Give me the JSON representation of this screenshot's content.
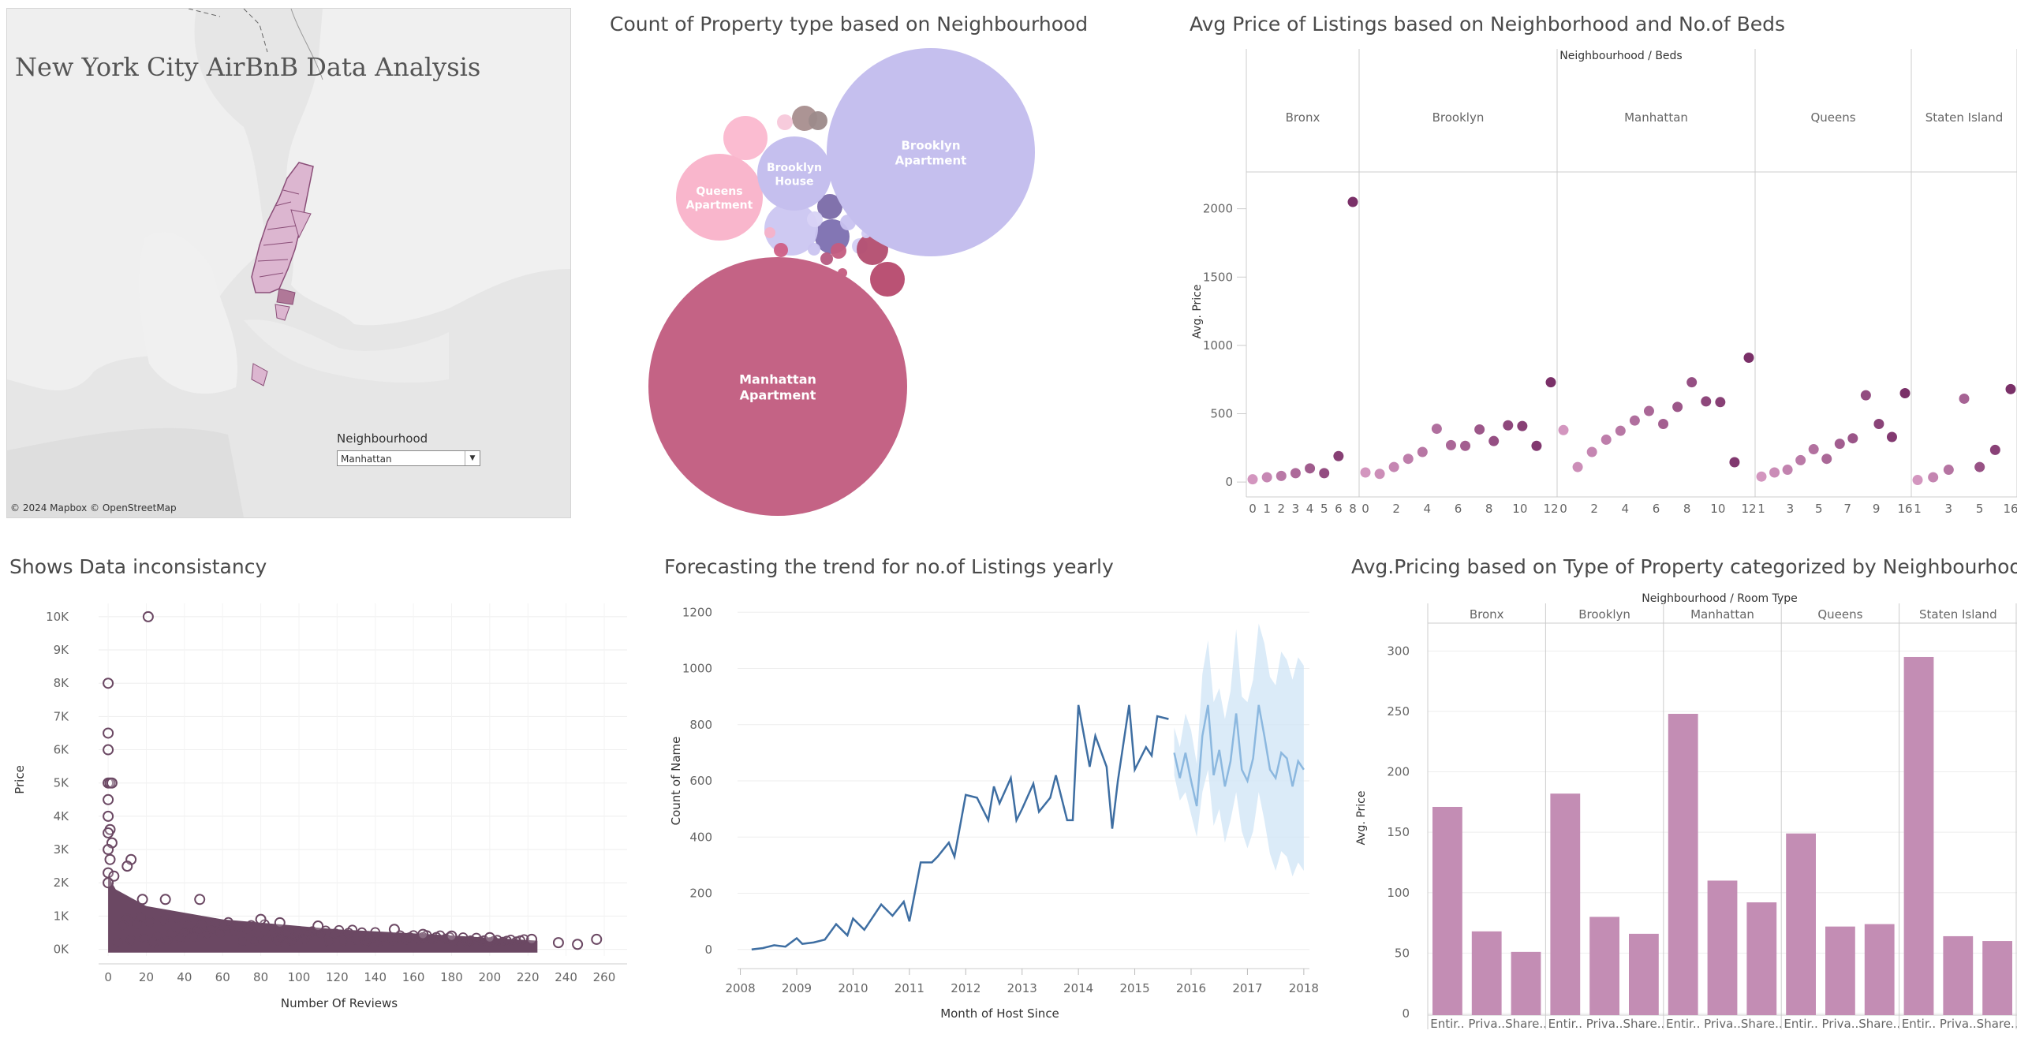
{
  "map": {
    "title": "New York City AirBnB Data Analysis",
    "filter_label": "Neighbourhood",
    "filter_value": "Manhattan",
    "attribution": "© 2024 Mapbox © OpenStreetMap"
  },
  "titles": {
    "bubble": "Count of Property type based on Neighbourhood",
    "dot": "Avg Price of Listings based on Neighborhood and No.of Beds",
    "scatter": "Shows Data inconsistancy",
    "forecast": "Forecasting the trend for no.of Listings yearly",
    "bar": "Avg.Pricing based on Type of Property categorized by Neighbourhood"
  },
  "chart_data": [
    {
      "type": "bubble",
      "title": "Count of Property type based on Neighbourhood",
      "labeled_bubbles": [
        {
          "label": [
            "Manhattan",
            "Apartment"
          ],
          "color": "#c46385"
        },
        {
          "label": [
            "Brooklyn",
            "Apartment"
          ],
          "color": "#c5bfee"
        },
        {
          "label": [
            "Queens",
            "Apartment"
          ],
          "color": "#f9b6cc"
        },
        {
          "label": [
            "Brooklyn",
            "House"
          ],
          "color": "#c5bfee"
        }
      ]
    },
    {
      "type": "scatter",
      "title": "Avg Price of Listings based on Neighborhood and No.of Beds",
      "header": "Neighbourhood / Beds",
      "ylabel": "Avg. Price",
      "yticks": [
        0,
        500,
        1000,
        1500,
        2000
      ],
      "ylim": [
        -80,
        2200
      ],
      "panels": [
        {
          "name": "Bronx",
          "xticks": [
            "0",
            "1",
            "2",
            "3",
            "4",
            "5",
            "6",
            "8"
          ],
          "x": [
            0,
            1,
            2,
            3,
            4,
            5,
            6,
            8
          ],
          "y": [
            20,
            35,
            45,
            65,
            100,
            65,
            190,
            2050
          ]
        },
        {
          "name": "Brooklyn",
          "xticks": [
            "0",
            "2",
            "4",
            "6",
            "8",
            "10",
            "12"
          ],
          "x": [
            0,
            1,
            2,
            3,
            4,
            5,
            6,
            7,
            8,
            9,
            10,
            11,
            12,
            13
          ],
          "y": [
            70,
            60,
            110,
            170,
            220,
            390,
            270,
            265,
            385,
            300,
            415,
            410,
            265,
            730
          ]
        },
        {
          "name": "Manhattan",
          "xticks": [
            "0",
            "2",
            "4",
            "6",
            "8",
            "10",
            "12"
          ],
          "x": [
            0,
            1,
            2,
            3,
            4,
            5,
            6,
            7,
            8,
            9,
            10,
            11,
            12,
            13
          ],
          "y": [
            380,
            110,
            220,
            310,
            375,
            450,
            520,
            425,
            550,
            730,
            590,
            585,
            145,
            910
          ]
        },
        {
          "name": "Queens",
          "xticks": [
            "1",
            "3",
            "5",
            "7",
            "9",
            "16"
          ],
          "x": [
            0,
            1,
            2,
            3,
            4,
            5,
            6,
            7,
            8,
            9,
            10,
            11
          ],
          "y": [
            40,
            70,
            90,
            160,
            240,
            170,
            280,
            320,
            635,
            425,
            330,
            650
          ]
        },
        {
          "name": "Staten Island",
          "xticks": [
            "1",
            "3",
            "5",
            "16"
          ],
          "x": [
            0,
            1,
            2,
            3,
            4,
            5,
            6
          ],
          "y": [
            15,
            35,
            90,
            610,
            110,
            235,
            680
          ]
        }
      ]
    },
    {
      "type": "scatter",
      "title": "Shows Data inconsistancy",
      "xlabel": "Number Of Reviews",
      "ylabel": "Price",
      "xticks": [
        0,
        20,
        40,
        60,
        80,
        100,
        120,
        140,
        160,
        180,
        200,
        220,
        240,
        260
      ],
      "yticks": [
        "0K",
        "1K",
        "2K",
        "3K",
        "4K",
        "5K",
        "6K",
        "7K",
        "8K",
        "9K",
        "10K"
      ],
      "xlim": [
        -5,
        272
      ],
      "ylim": [
        -200,
        10400
      ],
      "outliers": [
        [
          21,
          10000
        ],
        [
          0,
          8000
        ],
        [
          0,
          6500
        ],
        [
          0,
          6000
        ],
        [
          0,
          5000
        ],
        [
          1,
          5000
        ],
        [
          2,
          5000
        ],
        [
          0,
          4500
        ],
        [
          0,
          4000
        ],
        [
          1,
          3600
        ],
        [
          0,
          3500
        ],
        [
          2,
          3200
        ],
        [
          0,
          3000
        ],
        [
          1,
          2700
        ],
        [
          12,
          2700
        ],
        [
          10,
          2500
        ],
        [
          0,
          2300
        ],
        [
          3,
          2200
        ],
        [
          0,
          2000
        ],
        [
          18,
          1500
        ],
        [
          48,
          1500
        ],
        [
          30,
          1500
        ],
        [
          80,
          900
        ],
        [
          90,
          800
        ],
        [
          110,
          700
        ],
        [
          150,
          600
        ],
        [
          165,
          450
        ],
        [
          180,
          400
        ],
        [
          200,
          350
        ],
        [
          222,
          300
        ],
        [
          236,
          200
        ],
        [
          246,
          150
        ],
        [
          256,
          300
        ]
      ]
    },
    {
      "type": "line",
      "title": "Forecasting the trend for no.of Listings yearly",
      "xlabel": "Month of Host Since",
      "ylabel": "Count of Name",
      "xticks": [
        "2008",
        "2009",
        "2010",
        "2011",
        "2012",
        "2013",
        "2014",
        "2015",
        "2016",
        "2017",
        "2018"
      ],
      "yticks": [
        0,
        200,
        400,
        600,
        800,
        1000,
        1200
      ],
      "ylim": [
        -40,
        1240
      ],
      "series": [
        {
          "x": [
            2008.2,
            2008.4,
            2008.6,
            2008.8,
            2009.0,
            2009.1,
            2009.3,
            2009.5,
            2009.7,
            2009.9,
            2010.0,
            2010.2,
            2010.4,
            2010.5,
            2010.7,
            2010.9,
            2011.0,
            2011.2,
            2011.4,
            2011.5,
            2011.7,
            2011.8,
            2012.0,
            2012.2,
            2012.4,
            2012.5,
            2012.6,
            2012.8,
            2012.9,
            2013.0,
            2013.2,
            2013.3,
            2013.5,
            2013.6,
            2013.8,
            2013.9,
            2014.0,
            2014.2,
            2014.3,
            2014.5,
            2014.6,
            2014.7,
            2014.9,
            2015.0,
            2015.2,
            2015.3,
            2015.4,
            2015.6
          ],
          "y": [
            0,
            5,
            15,
            10,
            40,
            20,
            25,
            35,
            90,
            50,
            110,
            70,
            130,
            160,
            120,
            170,
            100,
            310,
            310,
            330,
            380,
            330,
            550,
            540,
            460,
            580,
            520,
            610,
            460,
            500,
            590,
            490,
            540,
            620,
            460,
            460,
            870,
            650,
            760,
            650,
            430,
            600,
            870,
            640,
            720,
            690,
            830,
            820
          ]
        },
        {
          "x": [
            2015.7,
            2015.8,
            2015.9,
            2016.0,
            2016.1,
            2016.2,
            2016.3,
            2016.4,
            2016.5,
            2016.6,
            2016.7,
            2016.8,
            2016.9,
            2017.0,
            2017.1,
            2017.2,
            2017.3,
            2017.4,
            2017.5,
            2017.6,
            2017.7,
            2017.8,
            2017.9,
            2018.0
          ],
          "y": [
            700,
            610,
            700,
            600,
            510,
            760,
            870,
            620,
            710,
            580,
            670,
            840,
            640,
            600,
            680,
            870,
            760,
            640,
            610,
            700,
            680,
            580,
            670,
            640
          ]
        }
      ],
      "forecast_band_low": [
        620,
        530,
        560,
        480,
        400,
        560,
        640,
        440,
        500,
        380,
        460,
        560,
        420,
        360,
        420,
        560,
        460,
        340,
        280,
        350,
        330,
        260,
        310,
        280
      ],
      "forecast_band_high": [
        790,
        720,
        840,
        780,
        660,
        980,
        1100,
        880,
        930,
        820,
        920,
        1140,
        900,
        880,
        960,
        1160,
        1090,
        970,
        940,
        1060,
        1030,
        960,
        1040,
        1010
      ]
    },
    {
      "type": "bar",
      "title": "Avg.Pricing based on Type of Property categorized by Neighbourhood",
      "header": "Neighbourhood / Room Type",
      "ylabel": "Avg. Price",
      "yticks": [
        0,
        50,
        100,
        150,
        200,
        250,
        300
      ],
      "ylim": [
        0,
        310
      ],
      "groups": [
        "Bronx",
        "Brooklyn",
        "Manhattan",
        "Queens",
        "Staten Island"
      ],
      "categories": [
        "Entir..",
        "Priva..",
        "Share.."
      ],
      "values": [
        [
          171,
          68,
          51
        ],
        [
          182,
          80,
          66
        ],
        [
          248,
          110,
          92
        ],
        [
          149,
          72,
          74
        ],
        [
          295,
          64,
          60
        ]
      ]
    }
  ]
}
